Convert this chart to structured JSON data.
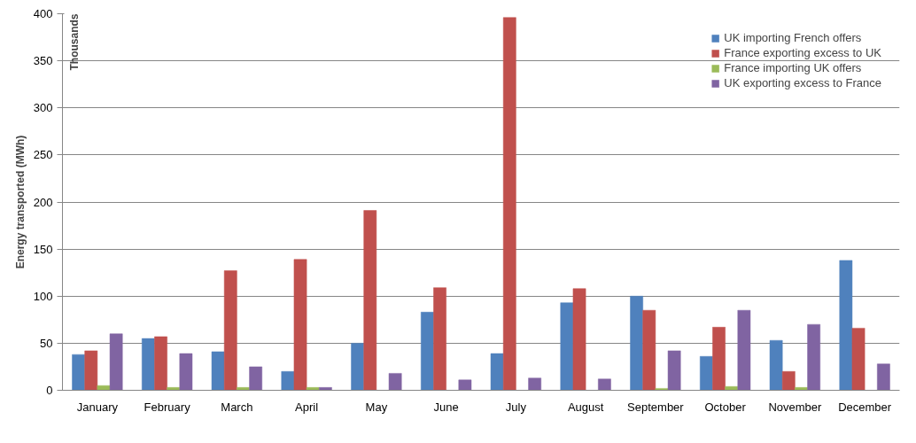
{
  "chart_data": {
    "type": "bar",
    "ylabel": "Energy transported (MWh)",
    "annotations": [
      "Thousands"
    ],
    "categories": [
      "January",
      "February",
      "March",
      "April",
      "May",
      "June",
      "July",
      "August",
      "September",
      "October",
      "November",
      "December"
    ],
    "series": [
      {
        "name": "UK importing French offers",
        "color": "#4f81bd",
        "values": [
          38,
          55,
          41,
          20,
          50,
          83,
          39,
          93,
          100,
          36,
          53,
          138
        ]
      },
      {
        "name": "France exporting excess to UK",
        "color": "#c0504d",
        "values": [
          42,
          57,
          127,
          139,
          191,
          109,
          396,
          108,
          85,
          67,
          20,
          66
        ]
      },
      {
        "name": "France importing UK offers",
        "color": "#9bbb59",
        "values": [
          5,
          3,
          3,
          3,
          null,
          0,
          0,
          0,
          2,
          4,
          3,
          0
        ]
      },
      {
        "name": "UK exporting excess to France",
        "color": "#8064a2",
        "values": [
          60,
          39,
          25,
          3,
          18,
          11,
          13,
          12,
          42,
          85,
          70,
          28
        ]
      }
    ],
    "ylim": [
      0,
      400
    ],
    "yticks": [
      0,
      50,
      100,
      150,
      200,
      250,
      300,
      350,
      400
    ],
    "grid": "y",
    "legend": "top right"
  }
}
